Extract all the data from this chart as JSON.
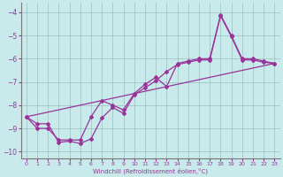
{
  "xlabel": "Windchill (Refroidissement éolien,°C)",
  "bg_color": "#c8eaea",
  "line_color": "#993399",
  "xlim": [
    -0.5,
    23.5
  ],
  "ylim": [
    -10.3,
    -3.6
  ],
  "xticks": [
    0,
    1,
    2,
    3,
    4,
    5,
    6,
    7,
    8,
    9,
    10,
    11,
    12,
    13,
    14,
    15,
    16,
    17,
    18,
    19,
    20,
    21,
    22,
    23
  ],
  "yticks": [
    -10,
    -9,
    -8,
    -7,
    -6,
    -5,
    -4
  ],
  "series1_x": [
    0,
    1,
    2,
    3,
    4,
    5,
    6,
    7,
    8,
    9,
    10,
    11,
    12,
    13,
    14,
    15,
    16,
    17,
    18,
    19,
    20,
    21,
    22,
    23
  ],
  "series1_y": [
    -8.5,
    -9.0,
    -9.0,
    -9.5,
    -9.5,
    -9.5,
    -8.5,
    -7.8,
    -8.0,
    -8.2,
    -7.5,
    -7.1,
    -6.8,
    -7.2,
    -6.2,
    -6.1,
    -6.0,
    -6.0,
    -4.1,
    -5.0,
    -6.0,
    -6.0,
    -6.1,
    -6.2
  ],
  "series2_x": [
    0,
    1,
    2,
    3,
    4,
    5,
    6,
    7,
    8,
    9,
    10,
    11,
    12,
    13,
    14,
    15,
    16,
    17,
    18,
    19,
    20,
    21,
    22,
    23
  ],
  "series2_y": [
    -8.5,
    -8.8,
    -8.8,
    -9.6,
    -9.55,
    -9.65,
    -9.45,
    -8.55,
    -8.1,
    -8.35,
    -7.55,
    -7.25,
    -6.95,
    -6.55,
    -6.25,
    -6.15,
    -6.05,
    -6.05,
    -4.15,
    -5.05,
    -6.05,
    -6.05,
    -6.15,
    -6.2
  ],
  "series3_x": [
    0,
    23
  ],
  "series3_y": [
    -8.5,
    -6.2
  ]
}
